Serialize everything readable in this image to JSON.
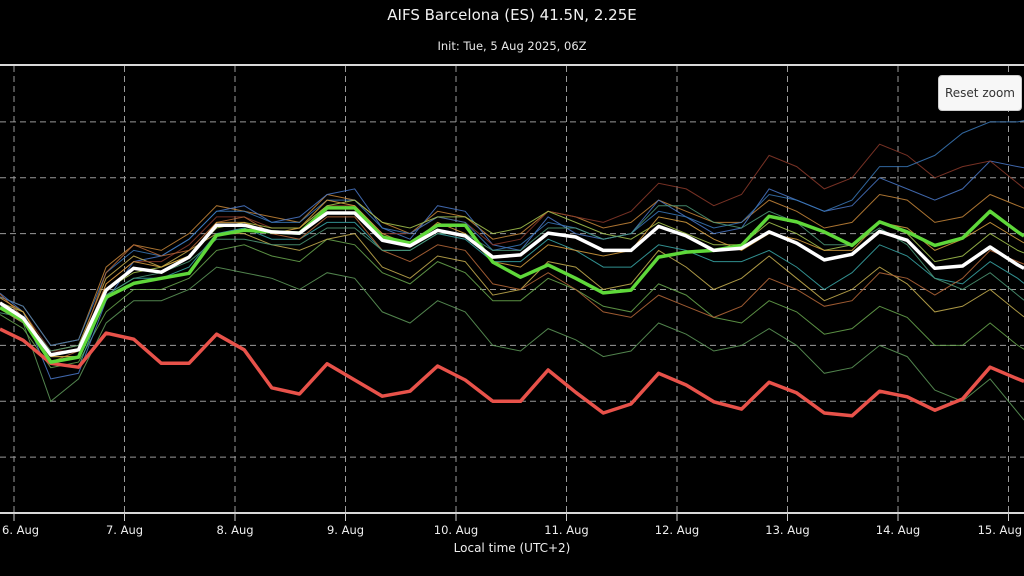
{
  "chart_data": {
    "type": "line",
    "title": "AIFS Barcelona (ES) 41.5N, 2.25E",
    "subtitle": "Init: Tue, 5 Aug 2025, 06Z",
    "xlabel": "Local time (UTC+2)",
    "ylabel": "",
    "ylim": [
      0,
      80
    ],
    "grid": true,
    "x_ticks": [
      "6. Aug",
      "7. Aug",
      "8. Aug",
      "9. Aug",
      "10. Aug",
      "11. Aug",
      "12. Aug",
      "13. Aug",
      "14. Aug",
      "15. Aug"
    ],
    "x": [
      "2025-08-05T20:00",
      "2025-08-06T02:00",
      "2025-08-06T08:00",
      "2025-08-06T14:00",
      "2025-08-06T20:00",
      "2025-08-07T02:00",
      "2025-08-07T08:00",
      "2025-08-07T14:00",
      "2025-08-07T20:00",
      "2025-08-08T02:00",
      "2025-08-08T08:00",
      "2025-08-08T14:00",
      "2025-08-08T20:00",
      "2025-08-09T02:00",
      "2025-08-09T08:00",
      "2025-08-09T14:00",
      "2025-08-09T20:00",
      "2025-08-10T02:00",
      "2025-08-10T08:00",
      "2025-08-10T14:00",
      "2025-08-10T20:00",
      "2025-08-11T02:00",
      "2025-08-11T08:00",
      "2025-08-11T14:00",
      "2025-08-11T20:00",
      "2025-08-12T02:00",
      "2025-08-12T08:00",
      "2025-08-12T14:00",
      "2025-08-12T20:00",
      "2025-08-13T02:00",
      "2025-08-13T08:00",
      "2025-08-13T14:00",
      "2025-08-13T20:00",
      "2025-08-14T02:00",
      "2025-08-14T08:00",
      "2025-08-14T14:00",
      "2025-08-14T20:00",
      "2025-08-15T02:00",
      "2025-08-15T08:00"
    ],
    "highlight_series": [
      {
        "color": "#e8524a",
        "values": [
          33.3,
          30.9,
          26.8,
          26.1,
          32.2,
          31.1,
          26.8,
          26.8,
          32.0,
          29.2,
          22.4,
          21.3,
          26.7,
          23.8,
          20.9,
          21.8,
          26.3,
          23.8,
          20.0,
          20.0,
          25.6,
          21.6,
          17.9,
          19.5,
          25.0,
          22.9,
          19.9,
          18.6,
          23.4,
          21.5,
          17.9,
          17.4,
          21.8,
          20.8,
          18.4,
          20.4,
          26.1,
          24.0,
          22.0
        ]
      },
      {
        "color": "#5fd83a",
        "values": [
          37.2,
          34.5,
          27.0,
          27.9,
          38.6,
          41.1,
          42.0,
          42.9,
          49.7,
          50.6,
          50.3,
          50.1,
          54.6,
          54.6,
          49.4,
          48.3,
          51.5,
          51.5,
          44.9,
          42.2,
          44.4,
          42.0,
          39.4,
          39.9,
          45.8,
          46.7,
          47.0,
          47.9,
          53.1,
          52.1,
          50.3,
          47.9,
          52.1,
          50.3,
          47.9,
          49.2,
          54.0,
          50.3,
          47.0
        ]
      },
      {
        "color": "#ffffff",
        "values": [
          38.1,
          34.9,
          28.3,
          29.2,
          39.9,
          43.8,
          43.1,
          45.8,
          51.5,
          51.5,
          50.3,
          50.1,
          53.7,
          53.7,
          48.8,
          47.8,
          50.6,
          49.6,
          45.8,
          46.2,
          50.1,
          49.4,
          47.0,
          47.0,
          51.3,
          49.6,
          47.0,
          47.4,
          50.3,
          48.3,
          45.3,
          46.3,
          50.4,
          48.8,
          43.8,
          44.2,
          47.6,
          44.4,
          41.7
        ]
      }
    ],
    "ensemble_members": [
      {
        "color": "#c8873a",
        "values": [
          39,
          37,
          30,
          31,
          44,
          48,
          47,
          50,
          55,
          54,
          53,
          52,
          57,
          56,
          52,
          50,
          54,
          53,
          49,
          50,
          54,
          53,
          51,
          52,
          56,
          54,
          52,
          52,
          56,
          54,
          51,
          52,
          57,
          56,
          52,
          53,
          57,
          55,
          53
        ]
      },
      {
        "color": "#6aa84f",
        "values": [
          36,
          33,
          26,
          27,
          36,
          40,
          40,
          42,
          47,
          48,
          46,
          45,
          49,
          48,
          43,
          41,
          45,
          43,
          38,
          38,
          42,
          40,
          37,
          36,
          41,
          39,
          35,
          34,
          38,
          36,
          32,
          33,
          37,
          35,
          30,
          30,
          34,
          30,
          27
        ]
      },
      {
        "color": "#4a78c8",
        "values": [
          40,
          36,
          24,
          25,
          38,
          45,
          46,
          49,
          54,
          55,
          52,
          53,
          57,
          58,
          51,
          49,
          55,
          54,
          48,
          47,
          53,
          50,
          49,
          50,
          56,
          53,
          50,
          51,
          58,
          56,
          54,
          55,
          60,
          58,
          56,
          58,
          63,
          62,
          61
        ]
      },
      {
        "color": "#c8b050",
        "values": [
          37,
          34,
          29,
          30,
          42,
          46,
          44,
          47,
          50,
          50,
          48,
          47,
          49,
          50,
          44,
          42,
          46,
          45,
          39,
          40,
          45,
          44,
          40,
          41,
          47,
          44,
          40,
          42,
          46,
          42,
          38,
          40,
          44,
          41,
          36,
          37,
          40,
          36,
          32
        ]
      },
      {
        "color": "#8b3a2a",
        "values": [
          38,
          36,
          29,
          29,
          41,
          45,
          45,
          48,
          53,
          53,
          51,
          51,
          55,
          55,
          50,
          50,
          53,
          52,
          48,
          49,
          54,
          53,
          52,
          54,
          59,
          58,
          55,
          57,
          64,
          62,
          58,
          60,
          66,
          64,
          60,
          62,
          63,
          59,
          55
        ]
      },
      {
        "color": "#5f9a5a",
        "values": [
          38,
          34,
          20,
          24,
          34,
          38,
          38,
          40,
          44,
          43,
          42,
          40,
          43,
          42,
          36,
          34,
          38,
          36,
          30,
          29,
          33,
          31,
          28,
          29,
          34,
          32,
          29,
          30,
          33,
          30,
          25,
          26,
          30,
          28,
          22,
          20,
          24,
          18,
          12
        ]
      },
      {
        "color": "#3a78b8",
        "values": [
          39,
          37,
          30,
          31,
          43,
          47,
          46,
          49,
          54,
          54,
          52,
          52,
          56,
          56,
          51,
          50,
          53,
          52,
          47,
          48,
          52,
          51,
          49,
          50,
          54,
          53,
          51,
          52,
          57,
          56,
          54,
          56,
          62,
          62,
          64,
          68,
          70,
          70,
          71
        ]
      },
      {
        "color": "#3aa8a8",
        "values": [
          37,
          35,
          27,
          26,
          39,
          42,
          42,
          44,
          50,
          51,
          49,
          49,
          52,
          52,
          47,
          47,
          50,
          49,
          45,
          45,
          49,
          47,
          44,
          44,
          48,
          47,
          45,
          45,
          47,
          44,
          40,
          43,
          48,
          46,
          42,
          41,
          45,
          42,
          38
        ]
      },
      {
        "color": "#a8c850",
        "values": [
          38,
          36,
          28,
          28,
          40,
          43,
          44,
          46,
          51,
          52,
          51,
          51,
          55,
          56,
          52,
          51,
          53,
          53,
          50,
          51,
          54,
          52,
          50,
          49,
          52,
          50,
          48,
          48,
          52,
          50,
          47,
          48,
          52,
          50,
          45,
          46,
          50,
          47,
          45
        ]
      },
      {
        "color": "#b86a3a",
        "values": [
          40,
          35,
          27,
          29,
          43,
          48,
          46,
          47,
          52,
          53,
          50,
          49,
          53,
          53,
          47,
          45,
          48,
          47,
          41,
          40,
          43,
          40,
          36,
          35,
          39,
          37,
          35,
          37,
          42,
          40,
          37,
          38,
          43,
          42,
          39,
          42,
          47,
          45,
          43
        ]
      },
      {
        "color": "#4f9a78",
        "values": [
          36,
          35,
          29,
          30,
          39,
          42,
          43,
          45,
          49,
          49,
          48,
          48,
          51,
          51,
          47,
          47,
          50,
          50,
          47,
          47,
          51,
          51,
          49,
          50,
          55,
          55,
          52,
          51,
          54,
          52,
          48,
          48,
          51,
          48,
          42,
          40,
          43,
          39,
          35
        ]
      },
      {
        "color": "#d8a040",
        "values": [
          39,
          36,
          28,
          28,
          41,
          45,
          44,
          46,
          52,
          52,
          50,
          51,
          56,
          55,
          50,
          48,
          52,
          50,
          45,
          44,
          48,
          47,
          46,
          47,
          53,
          52,
          49,
          47,
          50,
          49,
          47,
          47,
          52,
          51,
          47,
          49,
          52,
          49,
          46
        ]
      }
    ]
  },
  "ui": {
    "reset_button_label": "Reset zoom"
  }
}
